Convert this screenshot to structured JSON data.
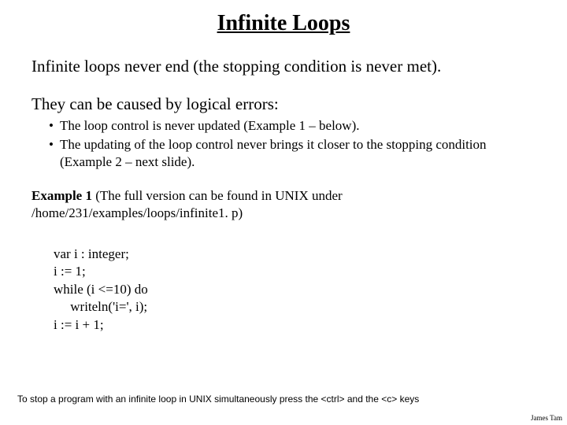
{
  "title": "Infinite Loops",
  "para1": "Infinite loops never end (the stopping condition is never met).",
  "para2": "They can be caused by logical errors:",
  "bullets": [
    "The loop control is never updated (Example 1 – below).",
    "The updating of the loop control never brings it closer to the stopping condition (Example 2 – next slide)."
  ],
  "example": {
    "label_bold": "Example 1",
    "label_rest": " (The full version can be found in UNIX under /home/231/examples/loops/infinite1. p)"
  },
  "code": {
    "l1": "var i : integer;",
    "l2": "i := 1;",
    "l3": "while (i <=10) do",
    "l4": "     writeln('i=', i);",
    "l5": "i := i + 1;"
  },
  "footnote": "To stop a program with an infinite loop in UNIX simultaneously press the <ctrl> and the <c> keys",
  "author": "James Tam"
}
